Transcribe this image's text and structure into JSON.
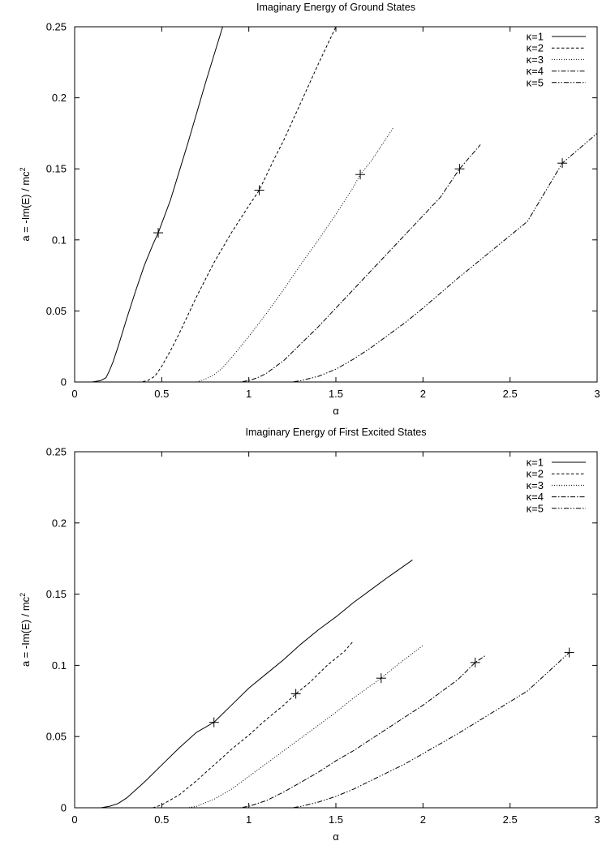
{
  "chart_data": [
    {
      "type": "line",
      "title": "Imaginary Energy of Ground States",
      "xlabel": "α",
      "ylabel_base": "a = -Im(E) / mc",
      "ylabel_sup": "2",
      "xlim": [
        0,
        3
      ],
      "ylim": [
        0,
        0.25
      ],
      "xticks": [
        0,
        0.5,
        1,
        1.5,
        2,
        2.5,
        3
      ],
      "xtick_labels": [
        "0",
        "0.5",
        "1",
        "1.5",
        "2",
        "2.5",
        "3"
      ],
      "yticks": [
        0,
        0.05,
        0.1,
        0.15,
        0.2,
        0.25
      ],
      "ytick_labels": [
        "0",
        "0.05",
        "0.1",
        "0.15",
        "0.2",
        "0.25"
      ],
      "grid": false,
      "legend_position": "top-right",
      "series": [
        {
          "name": "κ=1",
          "dash": "solid",
          "points": [
            [
              0,
              0
            ],
            [
              0.1,
              0
            ],
            [
              0.15,
              0.001
            ],
            [
              0.18,
              0.003
            ],
            [
              0.2,
              0.008
            ],
            [
              0.22,
              0.014
            ],
            [
              0.25,
              0.025
            ],
            [
              0.3,
              0.045
            ],
            [
              0.35,
              0.064
            ],
            [
              0.4,
              0.082
            ],
            [
              0.45,
              0.097
            ],
            [
              0.48,
              0.105
            ],
            [
              0.55,
              0.128
            ],
            [
              0.6,
              0.148
            ],
            [
              0.65,
              0.168
            ],
            [
              0.7,
              0.189
            ],
            [
              0.75,
              0.21
            ],
            [
              0.8,
              0.23
            ],
            [
              0.85,
              0.25
            ]
          ],
          "markers": [
            [
              0.48,
              0.105
            ]
          ]
        },
        {
          "name": "κ=2",
          "dash": "dashed",
          "points": [
            [
              0,
              0
            ],
            [
              0.38,
              0
            ],
            [
              0.42,
              0.001
            ],
            [
              0.46,
              0.004
            ],
            [
              0.5,
              0.011
            ],
            [
              0.55,
              0.022
            ],
            [
              0.6,
              0.034
            ],
            [
              0.7,
              0.06
            ],
            [
              0.8,
              0.084
            ],
            [
              0.9,
              0.105
            ],
            [
              1.0,
              0.124
            ],
            [
              1.06,
              0.135
            ],
            [
              1.15,
              0.158
            ],
            [
              1.2,
              0.17
            ],
            [
              1.3,
              0.197
            ],
            [
              1.4,
              0.224
            ],
            [
              1.5,
              0.25
            ]
          ],
          "markers": [
            [
              1.06,
              0.135
            ]
          ]
        },
        {
          "name": "κ=3",
          "dash": "dotted",
          "points": [
            [
              0,
              0
            ],
            [
              0.7,
              0
            ],
            [
              0.75,
              0.002
            ],
            [
              0.8,
              0.005
            ],
            [
              0.85,
              0.01
            ],
            [
              0.9,
              0.017
            ],
            [
              1.0,
              0.032
            ],
            [
              1.1,
              0.048
            ],
            [
              1.2,
              0.065
            ],
            [
              1.3,
              0.083
            ],
            [
              1.4,
              0.1
            ],
            [
              1.5,
              0.118
            ],
            [
              1.6,
              0.137
            ],
            [
              1.64,
              0.146
            ],
            [
              1.7,
              0.155
            ],
            [
              1.83,
              0.179
            ]
          ],
          "markers": [
            [
              1.64,
              0.146
            ]
          ]
        },
        {
          "name": "κ=4",
          "dash": "dashdot",
          "points": [
            [
              0,
              0
            ],
            [
              0.95,
              0
            ],
            [
              1.0,
              0.001
            ],
            [
              1.05,
              0.003
            ],
            [
              1.1,
              0.006
            ],
            [
              1.2,
              0.015
            ],
            [
              1.3,
              0.027
            ],
            [
              1.4,
              0.039
            ],
            [
              1.5,
              0.052
            ],
            [
              1.6,
              0.065
            ],
            [
              1.7,
              0.078
            ],
            [
              1.8,
              0.091
            ],
            [
              1.9,
              0.104
            ],
            [
              2.0,
              0.117
            ],
            [
              2.1,
              0.13
            ],
            [
              2.21,
              0.15
            ],
            [
              2.33,
              0.167
            ]
          ],
          "markers": [
            [
              2.21,
              0.15
            ]
          ]
        },
        {
          "name": "κ=5",
          "dash": "dashdotdot",
          "points": [
            [
              0,
              0
            ],
            [
              1.25,
              0
            ],
            [
              1.3,
              0.001
            ],
            [
              1.4,
              0.004
            ],
            [
              1.5,
              0.009
            ],
            [
              1.6,
              0.016
            ],
            [
              1.7,
              0.024
            ],
            [
              1.8,
              0.033
            ],
            [
              1.9,
              0.042
            ],
            [
              2.0,
              0.052
            ],
            [
              2.2,
              0.073
            ],
            [
              2.4,
              0.093
            ],
            [
              2.6,
              0.113
            ],
            [
              2.8,
              0.154
            ],
            [
              3.0,
              0.175
            ]
          ],
          "markers": [
            [
              2.8,
              0.154
            ]
          ]
        }
      ]
    },
    {
      "type": "line",
      "title": "Imaginary Energy of First Excited States",
      "xlabel": "α",
      "ylabel_base": "a = -Im(E) / mc",
      "ylabel_sup": "2",
      "xlim": [
        0,
        3
      ],
      "ylim": [
        0,
        0.25
      ],
      "xticks": [
        0,
        0.5,
        1,
        1.5,
        2,
        2.5,
        3
      ],
      "xtick_labels": [
        "0",
        "0.5",
        "1",
        "1.5",
        "2",
        "2.5",
        "3"
      ],
      "yticks": [
        0,
        0.05,
        0.1,
        0.15,
        0.2,
        0.25
      ],
      "ytick_labels": [
        "0",
        "0.05",
        "0.1",
        "0.15",
        "0.2",
        "0.25"
      ],
      "grid": false,
      "legend_position": "top-right",
      "series": [
        {
          "name": "κ=1",
          "dash": "solid",
          "points": [
            [
              0,
              0
            ],
            [
              0.15,
              0
            ],
            [
              0.2,
              0.001
            ],
            [
              0.25,
              0.003
            ],
            [
              0.3,
              0.007
            ],
            [
              0.4,
              0.018
            ],
            [
              0.5,
              0.03
            ],
            [
              0.6,
              0.042
            ],
            [
              0.7,
              0.053
            ],
            [
              0.8,
              0.06
            ],
            [
              0.9,
              0.072
            ],
            [
              1.0,
              0.084
            ],
            [
              1.1,
              0.094
            ],
            [
              1.2,
              0.104
            ],
            [
              1.3,
              0.115
            ],
            [
              1.4,
              0.125
            ],
            [
              1.5,
              0.134
            ],
            [
              1.6,
              0.144
            ],
            [
              1.7,
              0.153
            ],
            [
              1.8,
              0.162
            ],
            [
              1.94,
              0.174
            ]
          ],
          "markers": [
            [
              0.8,
              0.06
            ]
          ]
        },
        {
          "name": "κ=2",
          "dash": "dashed",
          "points": [
            [
              0,
              0
            ],
            [
              0.45,
              0
            ],
            [
              0.5,
              0.002
            ],
            [
              0.6,
              0.009
            ],
            [
              0.7,
              0.019
            ],
            [
              0.8,
              0.03
            ],
            [
              0.9,
              0.041
            ],
            [
              1.0,
              0.051
            ],
            [
              1.1,
              0.062
            ],
            [
              1.2,
              0.072
            ],
            [
              1.27,
              0.08
            ],
            [
              1.35,
              0.088
            ],
            [
              1.45,
              0.1
            ],
            [
              1.55,
              0.11
            ],
            [
              1.6,
              0.117
            ]
          ],
          "markers": [
            [
              1.27,
              0.08
            ]
          ]
        },
        {
          "name": "κ=3",
          "dash": "dotted",
          "points": [
            [
              0,
              0
            ],
            [
              0.65,
              0
            ],
            [
              0.7,
              0.001
            ],
            [
              0.8,
              0.006
            ],
            [
              0.9,
              0.013
            ],
            [
              1.0,
              0.022
            ],
            [
              1.1,
              0.031
            ],
            [
              1.2,
              0.04
            ],
            [
              1.3,
              0.049
            ],
            [
              1.4,
              0.058
            ],
            [
              1.5,
              0.067
            ],
            [
              1.6,
              0.077
            ],
            [
              1.76,
              0.091
            ],
            [
              1.85,
              0.1
            ],
            [
              2.0,
              0.114
            ]
          ],
          "markers": [
            [
              1.76,
              0.091
            ]
          ]
        },
        {
          "name": "κ=4",
          "dash": "dashdot",
          "points": [
            [
              0,
              0
            ],
            [
              0.95,
              0
            ],
            [
              1.0,
              0.001
            ],
            [
              1.1,
              0.005
            ],
            [
              1.2,
              0.011
            ],
            [
              1.3,
              0.018
            ],
            [
              1.4,
              0.025
            ],
            [
              1.5,
              0.033
            ],
            [
              1.6,
              0.04
            ],
            [
              1.7,
              0.048
            ],
            [
              1.8,
              0.056
            ],
            [
              1.9,
              0.064
            ],
            [
              2.0,
              0.072
            ],
            [
              2.1,
              0.081
            ],
            [
              2.2,
              0.09
            ],
            [
              2.3,
              0.102
            ],
            [
              2.36,
              0.107
            ]
          ],
          "markers": [
            [
              2.3,
              0.102
            ]
          ]
        },
        {
          "name": "κ=5",
          "dash": "dashdotdot",
          "points": [
            [
              0,
              0
            ],
            [
              1.25,
              0
            ],
            [
              1.3,
              0.001
            ],
            [
              1.4,
              0.004
            ],
            [
              1.5,
              0.008
            ],
            [
              1.6,
              0.013
            ],
            [
              1.7,
              0.019
            ],
            [
              1.8,
              0.025
            ],
            [
              1.9,
              0.031
            ],
            [
              2.0,
              0.038
            ],
            [
              2.2,
              0.052
            ],
            [
              2.4,
              0.067
            ],
            [
              2.6,
              0.082
            ],
            [
              2.84,
              0.109
            ]
          ],
          "markers": [
            [
              2.84,
              0.109
            ]
          ]
        }
      ]
    }
  ]
}
